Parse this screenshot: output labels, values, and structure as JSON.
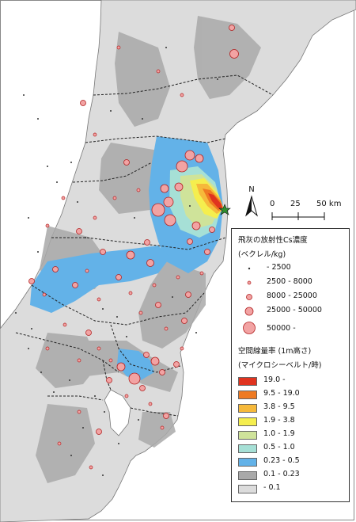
{
  "scale": {
    "ticks": [
      "0",
      "25",
      "50 km"
    ]
  },
  "north_label": "N",
  "legend": {
    "cs_title": "飛灰の放射性Cs濃度",
    "cs_unit": "(ベクレル/kg)",
    "cs_classes": [
      {
        "label": "- 2500",
        "symbol": "dot-tiny"
      },
      {
        "label": "2500 - 8000",
        "symbol": "circle-small"
      },
      {
        "label": "8000 - 25000",
        "symbol": "circle-medium"
      },
      {
        "label": "25000 - 50000",
        "symbol": "circle-large"
      },
      {
        "label": "50000 -",
        "symbol": "circle-xlarge"
      }
    ],
    "dose_title": "空間線量率 (1m高さ)",
    "dose_unit": "(マイクロシーベルト/時)",
    "dose_classes": [
      {
        "label": "19.0 -",
        "color": "#e0331f"
      },
      {
        "label": "9.5 - 19.0",
        "color": "#ef7a22"
      },
      {
        "label": "3.8 - 9.5",
        "color": "#f6b93b"
      },
      {
        "label": "1.9 - 3.8",
        "color": "#f5ee4e"
      },
      {
        "label": "1.0 - 1.9",
        "color": "#cfe39a"
      },
      {
        "label": "0.5 - 1.0",
        "color": "#a6e0d6"
      },
      {
        "label": "0.23 - 0.5",
        "color": "#63b2e8"
      },
      {
        "label": "0.1 - 0.23",
        "color": "#a9a9a9"
      },
      {
        "label": "- 0.1",
        "color": "#dcdcdc"
      }
    ]
  },
  "colors": {
    "sea": "#ffffff",
    "land_low": "#dcdcdc",
    "land_mid": "#a9a9a9",
    "sample_fill": "#f2a3a3",
    "sample_stroke": "#b22222",
    "boundary": "#222222",
    "plant_marker": "#2f8f2f"
  },
  "site_marker": "star-icon"
}
